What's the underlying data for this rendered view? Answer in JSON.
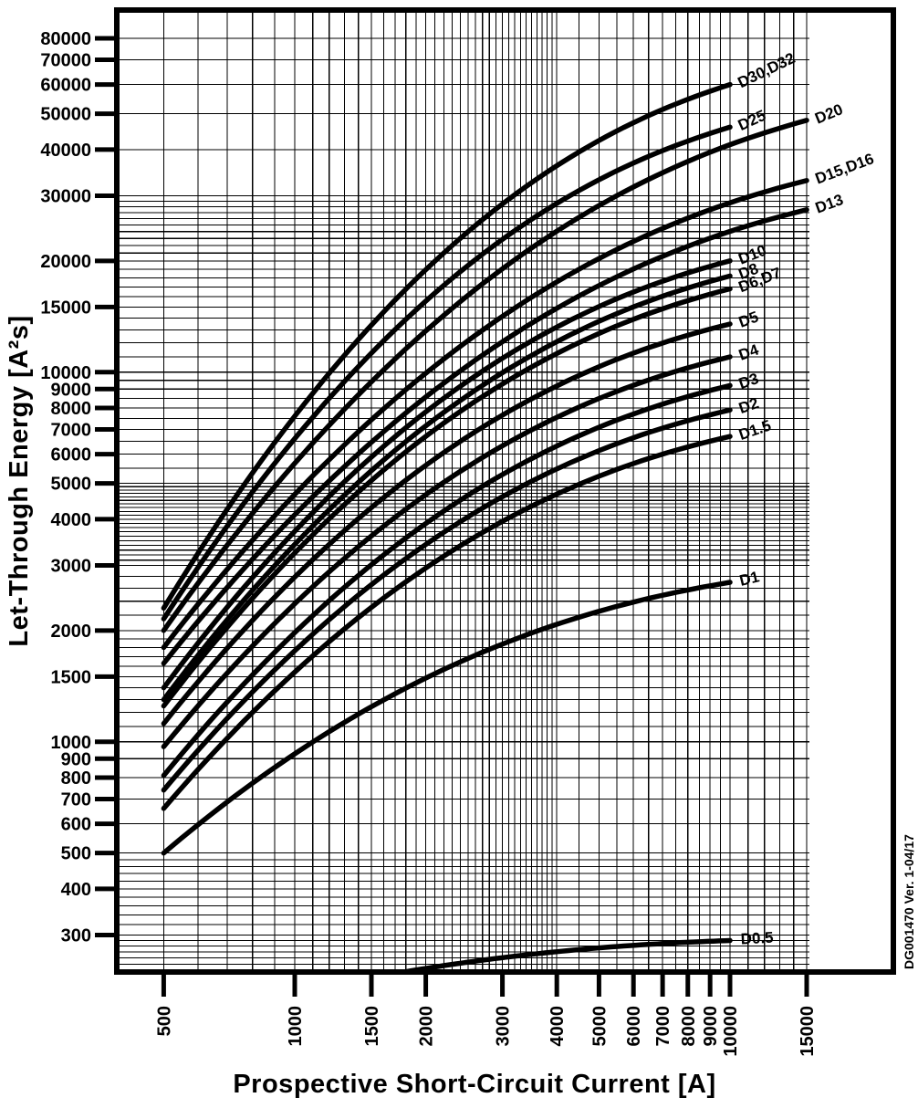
{
  "colors": {
    "ink": "#000000",
    "background": "#ffffff"
  },
  "y_axis": {
    "title": "Let-Through Energy [A²s]",
    "ticks": [
      80000,
      70000,
      60000,
      50000,
      40000,
      30000,
      20000,
      15000,
      10000,
      9000,
      8000,
      7000,
      6000,
      5000,
      4000,
      3000,
      2000,
      1500,
      1000,
      900,
      800,
      700,
      600,
      500,
      400,
      300
    ]
  },
  "x_axis": {
    "title": "Prospective Short-Circuit Current [A]",
    "ticks": [
      500,
      1000,
      1500,
      2000,
      3000,
      4000,
      5000,
      6000,
      7000,
      8000,
      9000,
      10000,
      15000
    ]
  },
  "side_note": "DG001470 Ver. 1-04/17",
  "grid": {
    "x_rules": [
      [
        500,
        1000,
        100
      ],
      [
        1000,
        2000,
        100
      ],
      [
        2000,
        3000,
        100
      ],
      [
        3000,
        4000,
        100
      ],
      [
        4000,
        10000,
        500
      ],
      [
        10000,
        15000,
        1000
      ]
    ],
    "y_rules": [
      [
        240,
        300,
        10
      ],
      [
        300,
        500,
        20
      ],
      [
        500,
        1000,
        100
      ],
      [
        1000,
        2000,
        100
      ],
      [
        2000,
        3000,
        200
      ],
      [
        3000,
        5000,
        100
      ],
      [
        5000,
        10000,
        500
      ],
      [
        10000,
        30000,
        1000
      ],
      [
        30000,
        80000,
        10000
      ]
    ]
  },
  "chart_data": {
    "type": "line",
    "title": "",
    "xlabel": "Prospective Short-Circuit Current [A]",
    "ylabel": "Let-Through Energy [A²s]",
    "x_scale": "log",
    "y_scale": "log",
    "xlim": [
      390,
      15200
    ],
    "ylim": [
      238,
      95000
    ],
    "grid": true,
    "legend_position": "curve-end-labels",
    "shape": {
      "alpha": 0.35,
      "p": 2.2
    },
    "series": [
      {
        "label": "D0.5",
        "i": [
          1500,
          10000
        ],
        "e": [
          230,
          290
        ],
        "points": [
          [
            1500,
            230
          ],
          [
            2000,
            240
          ],
          [
            3000,
            260
          ],
          [
            5000,
            280
          ],
          [
            10000,
            290
          ]
        ]
      },
      {
        "label": "D1",
        "i": [
          500,
          10000
        ],
        "e": [
          500,
          2700
        ],
        "points": [
          [
            500,
            500
          ],
          [
            1000,
            900
          ],
          [
            2000,
            1500
          ],
          [
            3000,
            1900
          ],
          [
            5000,
            2300
          ],
          [
            10000,
            2700
          ]
        ]
      },
      {
        "label": "D1.5",
        "i": [
          500,
          10000
        ],
        "e": [
          660,
          6700
        ],
        "points": [
          [
            500,
            660
          ],
          [
            1000,
            1500
          ],
          [
            2000,
            2900
          ],
          [
            3000,
            4000
          ],
          [
            5000,
            5500
          ],
          [
            10000,
            6700
          ]
        ]
      },
      {
        "label": "D2",
        "i": [
          500,
          10000
        ],
        "e": [
          740,
          7900
        ],
        "points": [
          [
            500,
            740
          ],
          [
            1000,
            1700
          ],
          [
            2000,
            3400
          ],
          [
            3000,
            4700
          ],
          [
            5000,
            6400
          ],
          [
            10000,
            7900
          ]
        ]
      },
      {
        "label": "D3",
        "i": [
          500,
          10000
        ],
        "e": [
          810,
          9200
        ],
        "points": [
          [
            500,
            810
          ],
          [
            1000,
            1900
          ],
          [
            2000,
            3800
          ],
          [
            3000,
            5400
          ],
          [
            5000,
            7400
          ],
          [
            10000,
            9200
          ]
        ]
      },
      {
        "label": "D4",
        "i": [
          500,
          10000
        ],
        "e": [
          970,
          11000
        ],
        "points": [
          [
            500,
            970
          ],
          [
            1000,
            2300
          ],
          [
            2000,
            4600
          ],
          [
            3000,
            6400
          ],
          [
            5000,
            8900
          ],
          [
            10000,
            11000
          ]
        ]
      },
      {
        "label": "D5",
        "i": [
          500,
          10000
        ],
        "e": [
          1120,
          13500
        ],
        "points": [
          [
            500,
            1120
          ],
          [
            1000,
            2700
          ],
          [
            2000,
            5500
          ],
          [
            3000,
            7800
          ],
          [
            5000,
            10800
          ],
          [
            10000,
            13500
          ]
        ]
      },
      {
        "label": "D6,D7",
        "i": [
          500,
          10000
        ],
        "e": [
          1250,
          16800
        ],
        "points": [
          [
            500,
            1250
          ],
          [
            1000,
            3100
          ],
          [
            2000,
            6600
          ],
          [
            3000,
            9400
          ],
          [
            5000,
            13300
          ],
          [
            10000,
            16800
          ]
        ]
      },
      {
        "label": "D8",
        "i": [
          500,
          10000
        ],
        "e": [
          1300,
          18200
        ],
        "points": [
          [
            500,
            1300
          ],
          [
            1000,
            3300
          ],
          [
            2000,
            7000
          ],
          [
            3000,
            10100
          ],
          [
            5000,
            14400
          ],
          [
            10000,
            18200
          ]
        ]
      },
      {
        "label": "D10",
        "i": [
          500,
          10000
        ],
        "e": [
          1400,
          20000
        ],
        "points": [
          [
            500,
            1400
          ],
          [
            1000,
            3600
          ],
          [
            2000,
            7700
          ],
          [
            3000,
            11100
          ],
          [
            5000,
            15800
          ],
          [
            10000,
            20000
          ]
        ]
      },
      {
        "label": "D13",
        "i": [
          500,
          15000
        ],
        "e": [
          1630,
          27500
        ],
        "points": [
          [
            500,
            1630
          ],
          [
            1000,
            3950
          ],
          [
            2000,
            8350
          ],
          [
            3000,
            12100
          ],
          [
            5000,
            17700
          ],
          [
            10000,
            25300
          ],
          [
            15000,
            27500
          ]
        ]
      },
      {
        "label": "D15,D16",
        "i": [
          500,
          15000
        ],
        "e": [
          1800,
          33000
        ],
        "points": [
          [
            500,
            1800
          ],
          [
            1000,
            4480
          ],
          [
            2000,
            9700
          ],
          [
            3000,
            14200
          ],
          [
            5000,
            21000
          ],
          [
            10000,
            30200
          ],
          [
            15000,
            33000
          ]
        ]
      },
      {
        "label": "D20",
        "i": [
          500,
          15000
        ],
        "e": [
          2000,
          48000
        ],
        "points": [
          [
            500,
            2000
          ],
          [
            1000,
            5400
          ],
          [
            2000,
            12600
          ],
          [
            3000,
            19000
          ],
          [
            5000,
            29300
          ],
          [
            10000,
            43600
          ],
          [
            15000,
            48000
          ]
        ]
      },
      {
        "label": "D25",
        "i": [
          500,
          10000
        ],
        "e": [
          2150,
          46000
        ],
        "points": [
          [
            500,
            2150
          ],
          [
            1000,
            6300
          ],
          [
            2000,
            15300
          ],
          [
            3000,
            23300
          ],
          [
            5000,
            35000
          ],
          [
            10000,
            46000
          ]
        ]
      },
      {
        "label": "D30,D32",
        "i": [
          500,
          10000
        ],
        "e": [
          2300,
          60000
        ],
        "points": [
          [
            500,
            2300
          ],
          [
            1000,
            7600
          ],
          [
            2000,
            18500
          ],
          [
            3000,
            29100
          ],
          [
            5000,
            44900
          ],
          [
            10000,
            60000
          ]
        ]
      }
    ]
  }
}
